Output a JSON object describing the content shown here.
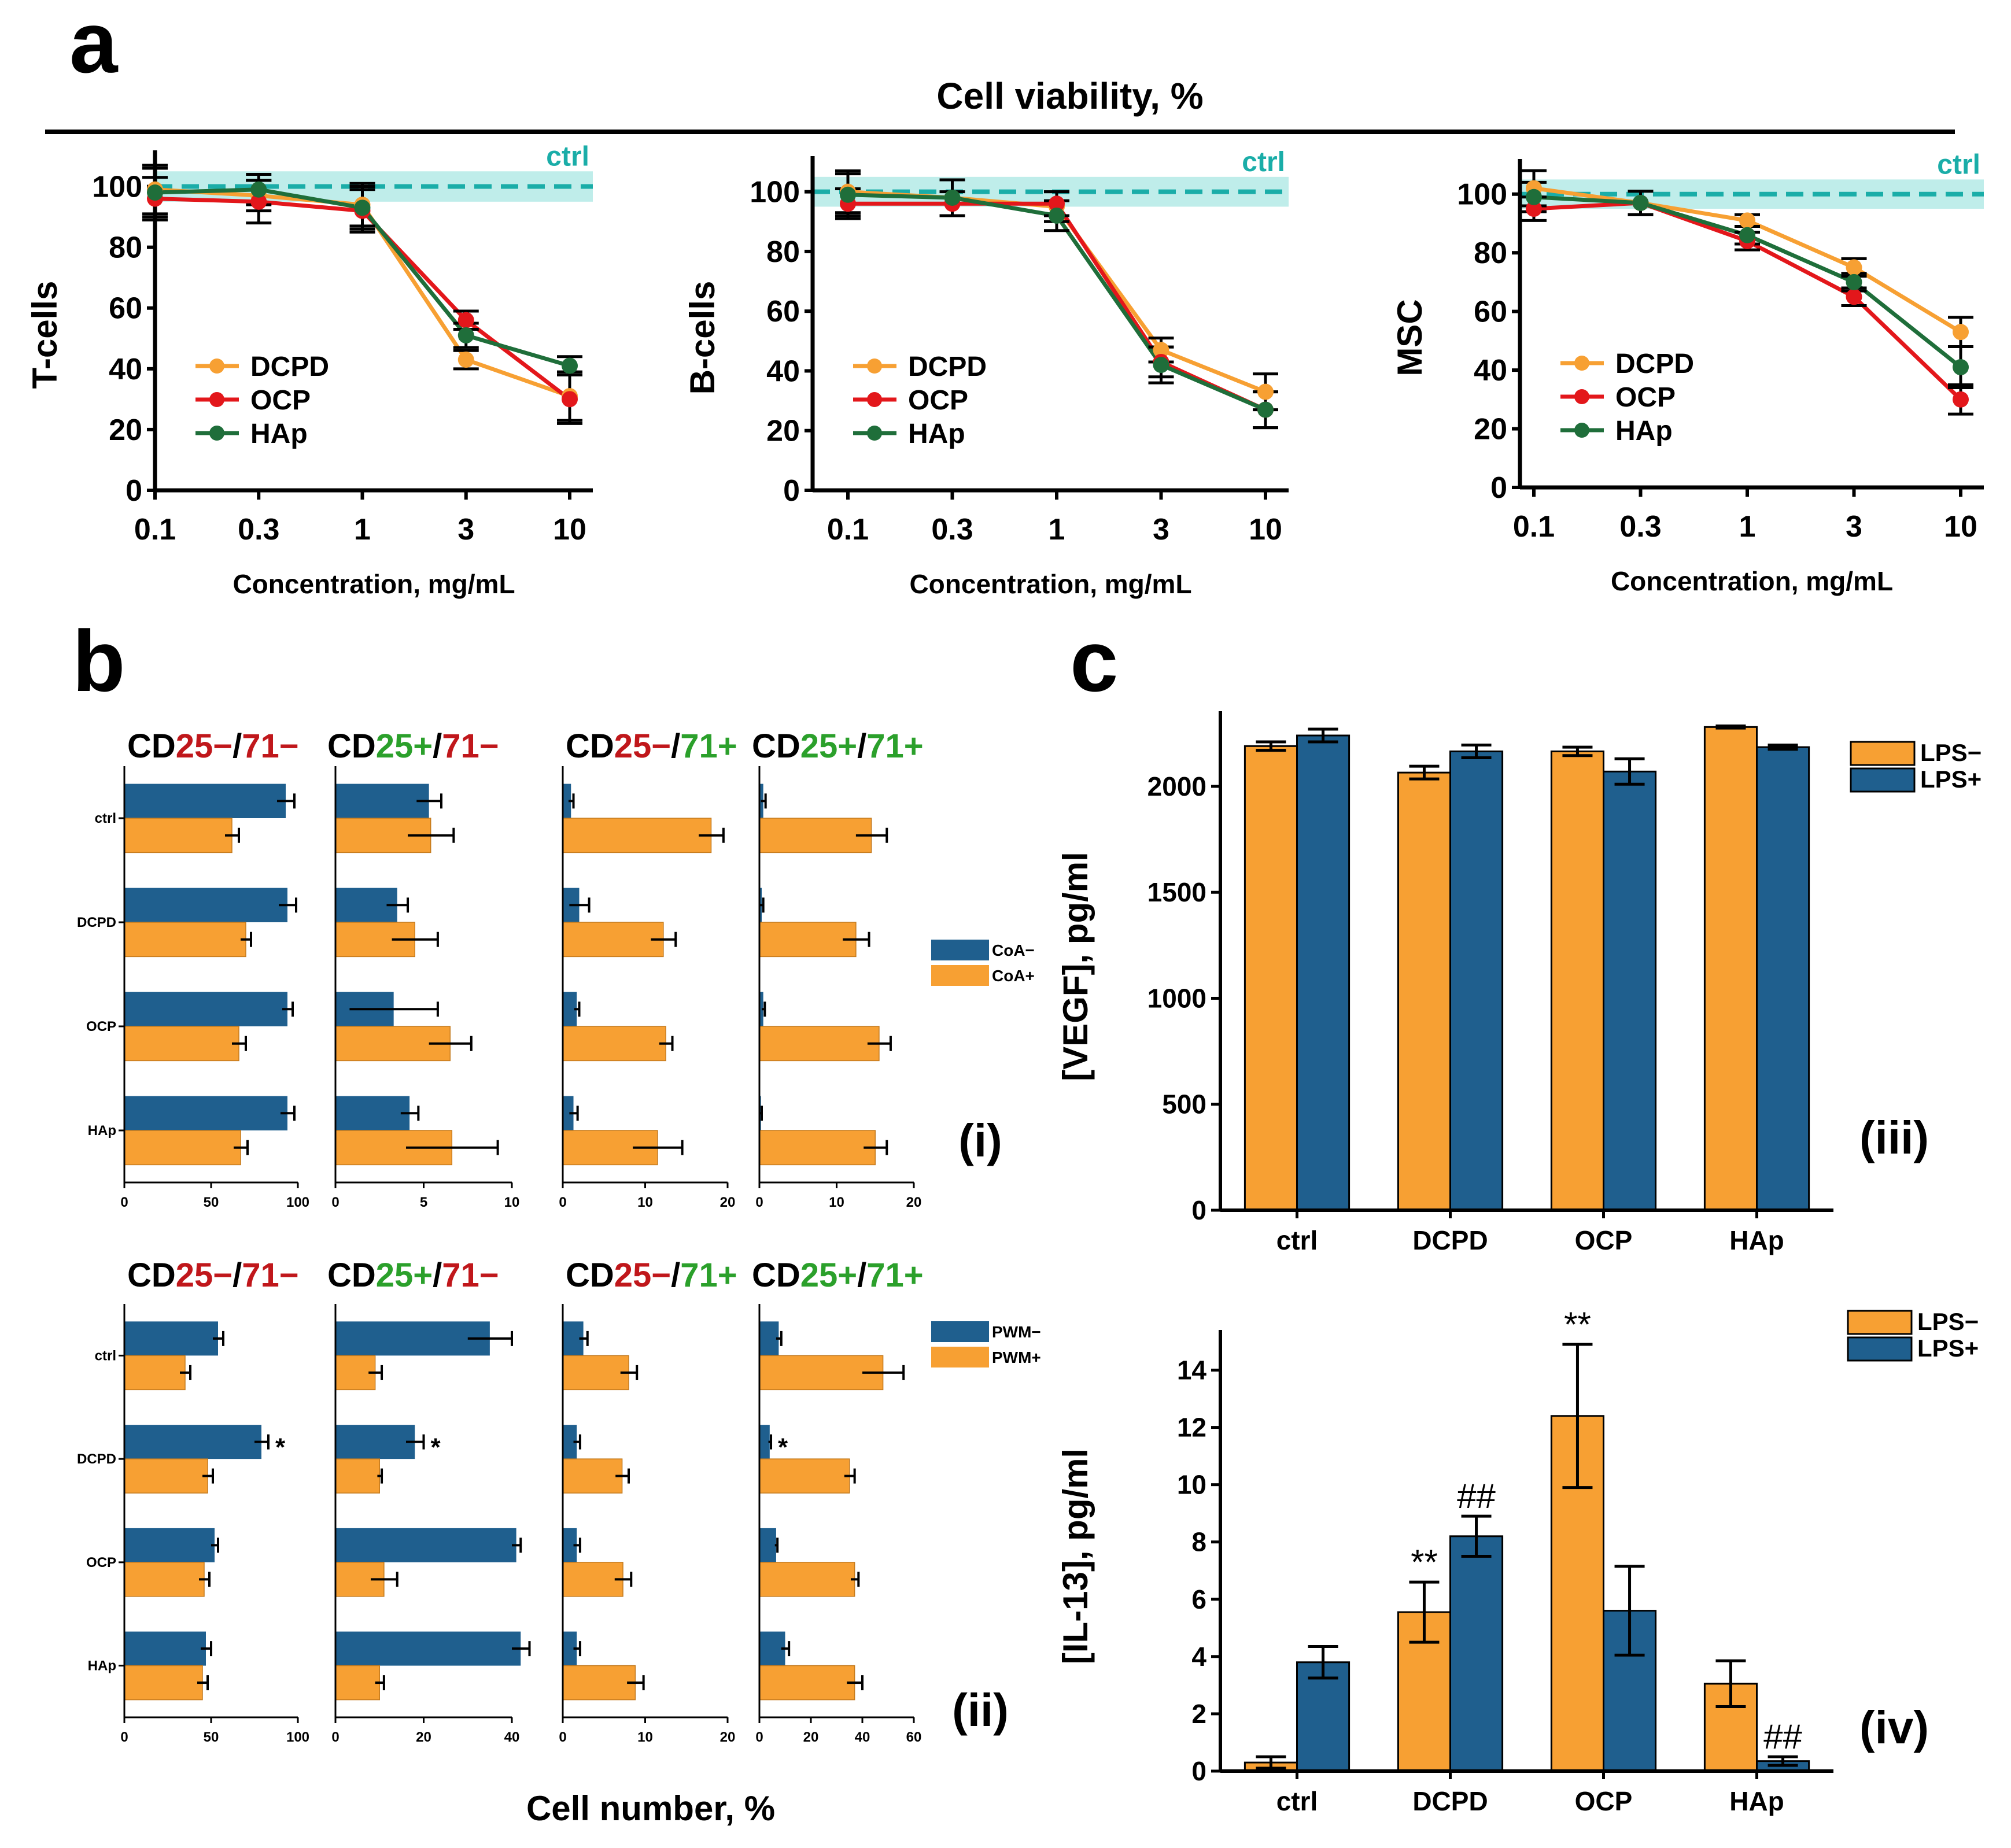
{
  "panel_labels": {
    "a": "a",
    "b": "b",
    "c": "c"
  },
  "panel_a_title": "Cell viability,  %",
  "colors": {
    "DCPD": "#F7A033",
    "OCP": "#E3171B",
    "HAp": "#1F6E3A",
    "ctrl": "#1AADA8",
    "ctrl_band": "#BFEDEA",
    "blue": "#1F5F8E",
    "orange": "#F7A033",
    "red": "#C0171B",
    "green": "#2BA02B"
  },
  "chart_data": [
    {
      "id": "a1",
      "type": "line",
      "title": "",
      "xlabel": "Concentration, mg/mL",
      "ylabel": "T-cells",
      "x": [
        "0.1",
        "0.3",
        "1",
        "3",
        "10"
      ],
      "ylim": [
        0,
        110
      ],
      "yticks": [
        0,
        20,
        40,
        60,
        80,
        100
      ],
      "ctrl": {
        "label": "ctrl",
        "value": 100,
        "band": [
          95,
          105
        ]
      },
      "legend": [
        "DCPD",
        "OCP",
        "HAp"
      ],
      "series": [
        {
          "name": "DCPD",
          "values": [
            99,
            97,
            94,
            43,
            31
          ],
          "errors": [
            8,
            5,
            7,
            3,
            8
          ]
        },
        {
          "name": "OCP",
          "values": [
            96,
            95,
            92,
            56,
            30
          ],
          "errors": [
            7,
            7,
            7,
            3,
            8
          ]
        },
        {
          "name": "HAp",
          "values": [
            98,
            99,
            93,
            51,
            41
          ],
          "errors": [
            8,
            5,
            7,
            4,
            3
          ]
        }
      ]
    },
    {
      "id": "a2",
      "type": "line",
      "title": "",
      "xlabel": "Concentration, mg/mL",
      "ylabel": "B-cells",
      "x": [
        "0.1",
        "0.3",
        "1",
        "3",
        "10"
      ],
      "ylim": [
        0,
        110
      ],
      "yticks": [
        0,
        20,
        40,
        60,
        80,
        100
      ],
      "ctrl": {
        "label": "ctrl",
        "value": 100,
        "band": [
          95,
          105
        ]
      },
      "legend": [
        "DCPD",
        "OCP",
        "HAp"
      ],
      "series": [
        {
          "name": "DCPD",
          "values": [
            100,
            98,
            95,
            47,
            33
          ],
          "errors": [
            7,
            6,
            5,
            4,
            6
          ]
        },
        {
          "name": "OCP",
          "values": [
            96,
            96,
            96,
            43,
            27
          ],
          "errors": [
            5,
            4,
            4,
            5,
            6
          ]
        },
        {
          "name": "HAp",
          "values": [
            99,
            98,
            92,
            42,
            27
          ],
          "errors": [
            7,
            6,
            5,
            6,
            6
          ]
        }
      ]
    },
    {
      "id": "a3",
      "type": "line",
      "title": "",
      "xlabel": "Concentration, mg/mL",
      "ylabel": "MSC",
      "x": [
        "0.1",
        "0.3",
        "1",
        "3",
        "10"
      ],
      "ylim": [
        0,
        110
      ],
      "yticks": [
        0,
        20,
        40,
        60,
        80,
        100
      ],
      "ctrl": {
        "label": "ctrl",
        "value": 100,
        "band": [
          95,
          105
        ]
      },
      "legend": [
        "DCPD",
        "OCP",
        "HAp"
      ],
      "series": [
        {
          "name": "DCPD",
          "values": [
            102,
            97,
            91,
            75,
            53
          ],
          "errors": [
            6,
            4,
            2,
            3,
            5
          ]
        },
        {
          "name": "OCP",
          "values": [
            95,
            97,
            84,
            65,
            30
          ],
          "errors": [
            4,
            4,
            3,
            3,
            5
          ]
        },
        {
          "name": "HAp",
          "values": [
            99,
            97,
            86,
            70,
            41
          ],
          "errors": [
            5,
            4,
            3,
            3,
            7
          ]
        }
      ]
    },
    {
      "id": "b_i",
      "type": "bar",
      "orientation": "horizontal",
      "roman": "(i)",
      "categories": [
        "ctrl",
        "DCPD",
        "OCP",
        "HAp"
      ],
      "legend": [
        "CoA−",
        "CoA+"
      ],
      "subplots": [
        {
          "title": [
            "CD",
            "25−",
            "/",
            "71−"
          ],
          "xlim": [
            0,
            100
          ],
          "xticks": [
            "0",
            "50",
            "100"
          ],
          "series": [
            {
              "name": "CoA−",
              "values": [
                93,
                94,
                94,
                94
              ],
              "errors": [
                5,
                5,
                3,
                4
              ]
            },
            {
              "name": "CoA+",
              "values": [
                62,
                70,
                66,
                67
              ],
              "errors": [
                4,
                3,
                4,
                4
              ]
            }
          ]
        },
        {
          "title": [
            "CD",
            "25+",
            "/",
            "71−"
          ],
          "xlim": [
            0,
            10
          ],
          "xticks": [
            "0",
            "5",
            "10"
          ],
          "series": [
            {
              "name": "CoA−",
              "values": [
                5.3,
                3.5,
                3.3,
                4.2
              ],
              "errors": [
                0.7,
                0.6,
                2.5,
                0.5
              ]
            },
            {
              "name": "CoA+",
              "values": [
                5.4,
                4.5,
                6.5,
                6.6
              ],
              "errors": [
                1.3,
                1.3,
                1.2,
                2.6
              ]
            }
          ]
        },
        {
          "title": [
            "CD",
            "25−",
            "/",
            "71+"
          ],
          "xlim": [
            0,
            20
          ],
          "xticks": [
            "0",
            "10",
            "20"
          ],
          "series": [
            {
              "name": "CoA−",
              "values": [
                1.0,
                2.0,
                1.7,
                1.3
              ],
              "errors": [
                0.3,
                1.2,
                0.3,
                0.5
              ]
            },
            {
              "name": "CoA+",
              "values": [
                18,
                12.2,
                12.5,
                11.5
              ],
              "errors": [
                1.5,
                1.5,
                0.8,
                3.0
              ]
            }
          ]
        },
        {
          "title": [
            "CD",
            "25+",
            "/",
            "71+"
          ],
          "xlim": [
            0,
            20
          ],
          "xticks": [
            "0",
            "10",
            "20"
          ],
          "series": [
            {
              "name": "CoA−",
              "values": [
                0.5,
                0.3,
                0.5,
                0.2
              ],
              "errors": [
                0.3,
                0.2,
                0.2,
                0.1
              ]
            },
            {
              "name": "CoA+",
              "values": [
                14.5,
                12.5,
                15.5,
                15
              ],
              "errors": [
                2,
                1.7,
                1.5,
                1.5
              ]
            }
          ]
        }
      ]
    },
    {
      "id": "b_ii",
      "type": "bar",
      "orientation": "horizontal",
      "roman": "(ii)",
      "xlabel": "Cell number, %",
      "categories": [
        "ctrl",
        "DCPD",
        "OCP",
        "HAp"
      ],
      "legend": [
        "PWM−",
        "PWM+"
      ],
      "subplots": [
        {
          "title": [
            "CD",
            "25−",
            "/",
            "71−"
          ],
          "xlim": [
            0,
            100
          ],
          "xticks": [
            "0",
            "50",
            "100"
          ],
          "series": [
            {
              "name": "PWM−",
              "values": [
                54,
                79,
                52,
                47
              ],
              "errors": [
                3,
                4,
                2,
                3
              ]
            },
            {
              "name": "PWM+",
              "values": [
                35,
                48,
                46,
                45
              ],
              "errors": [
                3,
                3,
                3,
                3
              ]
            }
          ],
          "stars": [
            false,
            true,
            false,
            false
          ]
        },
        {
          "title": [
            "CD",
            "25+",
            "/",
            "71−"
          ],
          "xlim": [
            0,
            40
          ],
          "xticks": [
            "0",
            "20",
            "40"
          ],
          "series": [
            {
              "name": "PWM−",
              "values": [
                35,
                18,
                41,
                42
              ],
              "errors": [
                5,
                2,
                1,
                2
              ]
            },
            {
              "name": "PWM+",
              "values": [
                9,
                10,
                11,
                10
              ],
              "errors": [
                1.5,
                0.5,
                3,
                1
              ]
            }
          ],
          "stars": [
            false,
            true,
            false,
            false
          ]
        },
        {
          "title": [
            "CD",
            "25−",
            "/",
            "71+"
          ],
          "xlim": [
            0,
            20
          ],
          "xticks": [
            "0",
            "10",
            "20"
          ],
          "series": [
            {
              "name": "PWM−",
              "values": [
                2.5,
                1.7,
                1.7,
                1.7
              ],
              "errors": [
                0.5,
                0.4,
                0.4,
                0.4
              ]
            },
            {
              "name": "PWM+",
              "values": [
                8,
                7.2,
                7.3,
                8.8
              ],
              "errors": [
                1,
                0.8,
                1,
                1
              ]
            }
          ],
          "stars": [
            false,
            false,
            false,
            false
          ]
        },
        {
          "title": [
            "CD",
            "25+",
            "/",
            "71+"
          ],
          "xlim": [
            0,
            60
          ],
          "xticks": [
            "0",
            "20",
            "40",
            "60"
          ],
          "series": [
            {
              "name": "PWM−",
              "values": [
                7.5,
                4,
                6.5,
                10
              ],
              "errors": [
                1,
                0.5,
                0.5,
                1.5
              ]
            },
            {
              "name": "PWM+",
              "values": [
                48,
                35,
                37,
                37
              ],
              "errors": [
                8,
                2,
                1.5,
                3
              ]
            }
          ],
          "stars": [
            false,
            true,
            false,
            false
          ]
        }
      ]
    },
    {
      "id": "c_iii",
      "type": "bar",
      "roman": "(iii)",
      "ylabel": "[VEGF], pg/ml",
      "categories": [
        "ctrl",
        "DCPD",
        "OCP",
        "HAp"
      ],
      "ylim": [
        0,
        2300
      ],
      "yticks": [
        0,
        500,
        1000,
        1500,
        2000
      ],
      "legend": [
        "LPS−",
        "LPS+"
      ],
      "series": [
        {
          "name": "LPS−",
          "values": [
            2190,
            2065,
            2165,
            2280
          ],
          "errors": [
            20,
            30,
            20,
            5
          ]
        },
        {
          "name": "LPS+",
          "values": [
            2240,
            2165,
            2070,
            2185
          ],
          "errors": [
            30,
            30,
            60,
            10
          ]
        }
      ],
      "annotations": [
        [
          "",
          ""
        ],
        [
          "",
          ""
        ],
        [
          "",
          ""
        ],
        [
          "",
          ""
        ]
      ]
    },
    {
      "id": "c_iv",
      "type": "bar",
      "roman": "(iv)",
      "ylabel": "[IL-13], pg/ml",
      "categories": [
        "ctrl",
        "DCPD",
        "OCP",
        "HAp"
      ],
      "ylim": [
        0,
        15
      ],
      "yticks": [
        0,
        2,
        4,
        6,
        8,
        10,
        12,
        14
      ],
      "legend": [
        "LPS−",
        "LPS+"
      ],
      "series": [
        {
          "name": "LPS−",
          "values": [
            0.3,
            5.55,
            12.4,
            3.05
          ],
          "errors": [
            0.2,
            1.05,
            2.5,
            0.8
          ]
        },
        {
          "name": "LPS+",
          "values": [
            3.8,
            8.2,
            5.6,
            0.35
          ],
          "errors": [
            0.55,
            0.7,
            1.55,
            0.15
          ]
        }
      ],
      "annotations": [
        [
          "",
          ""
        ],
        [
          "**",
          "##"
        ],
        [
          "**",
          ""
        ],
        [
          "",
          "##"
        ]
      ]
    }
  ]
}
